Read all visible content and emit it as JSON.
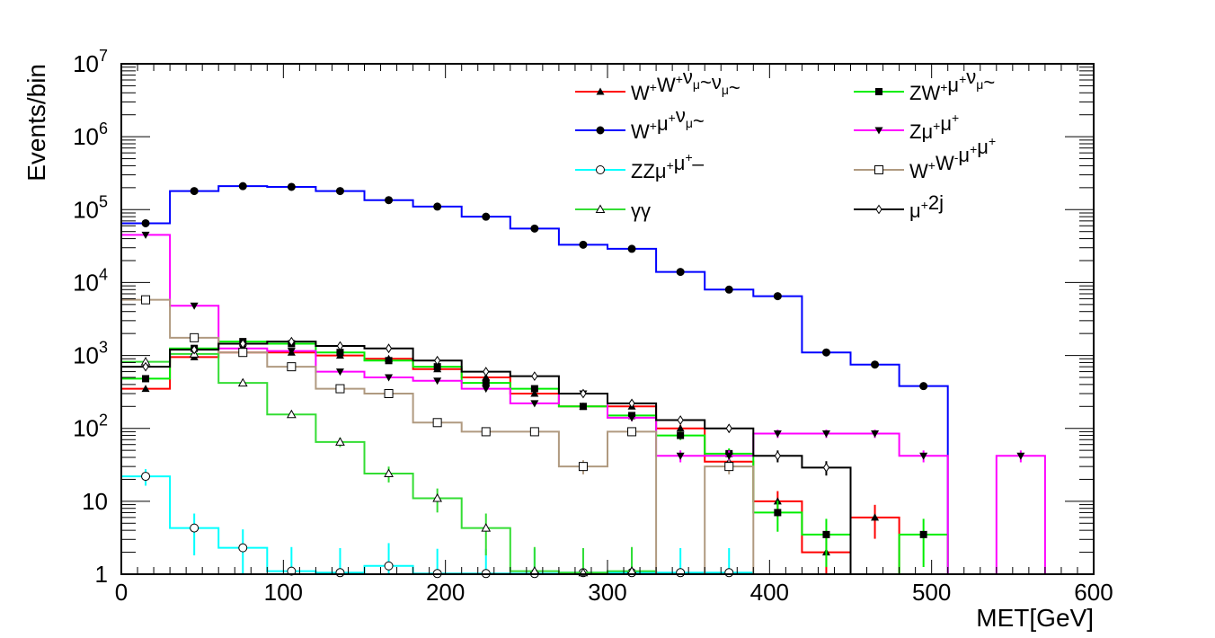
{
  "chart_data": {
    "type": "histogram",
    "scale_y": "log",
    "xlabel": "MET[GeV]",
    "ylabel": "Events/bin",
    "xlim": [
      0,
      600
    ],
    "ylim": [
      1,
      10000000
    ],
    "x_ticks": [
      "0",
      "100",
      "200",
      "300",
      "400",
      "500",
      "600"
    ],
    "y_ticks": [
      {
        "base": "1",
        "exp": ""
      },
      {
        "base": "10",
        "exp": ""
      },
      {
        "base": "10",
        "exp": "2"
      },
      {
        "base": "10",
        "exp": "3"
      },
      {
        "base": "10",
        "exp": "4"
      },
      {
        "base": "10",
        "exp": "5"
      },
      {
        "base": "10",
        "exp": "6"
      },
      {
        "base": "10",
        "exp": "7"
      }
    ],
    "bin_width": 30,
    "series": [
      {
        "name": "WWvv",
        "color": "#ff0000",
        "marker": "triangle-up-filled",
        "legend": [
          [
            "W",
            "n"
          ],
          [
            "+",
            "sup"
          ],
          [
            "W",
            "n"
          ],
          [
            "+",
            "sup"
          ],
          [
            "ν",
            "n"
          ],
          [
            "μ",
            "sub"
          ],
          [
            "~ν",
            "n"
          ],
          [
            "μ",
            "sub"
          ],
          [
            "~",
            "n"
          ]
        ],
        "values": [
          350,
          950,
          1100,
          1100,
          1000,
          900,
          650,
          500,
          300,
          200,
          200,
          100,
          35,
          10,
          2,
          6
        ]
      },
      {
        "name": "Wuv",
        "color": "#0000ff",
        "marker": "circle-filled",
        "legend": [
          [
            "W",
            "n"
          ],
          [
            "+",
            "sup"
          ],
          [
            "μ",
            "n"
          ],
          [
            "+",
            "sup"
          ],
          [
            "ν",
            "n"
          ],
          [
            "μ",
            "sub"
          ],
          [
            "~",
            "n"
          ]
        ],
        "values": [
          65000,
          180000,
          210000,
          205000,
          180000,
          135000,
          110000,
          80000,
          55000,
          33000,
          29000,
          14000,
          8000,
          6500,
          1100,
          750,
          380
        ]
      },
      {
        "name": "ZZuu",
        "color": "#00ffff",
        "marker": "circle-open",
        "legend": [
          [
            "ZZμ",
            "n"
          ],
          [
            "+",
            "sup"
          ],
          [
            "μ",
            "n"
          ],
          [
            "+",
            "sup"
          ],
          [
            "_",
            "n"
          ]
        ],
        "values": [
          22,
          4.3,
          2.3,
          1.1,
          1.05,
          1.3,
          1.02,
          1.02,
          1.02,
          1.05,
          1.05,
          1.05,
          1.05
        ]
      },
      {
        "name": "yy",
        "color": "#33dd33",
        "marker": "triangle-up-open",
        "legend": [
          [
            "γγ",
            "n"
          ]
        ],
        "values": [
          820,
          1050,
          420,
          155,
          65,
          24,
          11,
          4.3,
          1.1,
          1.05,
          1.1
        ]
      },
      {
        "name": "ZWuv",
        "color": "#00ee00",
        "marker": "square-filled",
        "legend": [
          [
            "ZW",
            "n"
          ],
          [
            "+",
            "sup"
          ],
          [
            "μ",
            "n"
          ],
          [
            "+",
            "sup"
          ],
          [
            "ν",
            "n"
          ],
          [
            "μ",
            "sub"
          ],
          [
            "~",
            "n"
          ]
        ],
        "values": [
          480,
          1250,
          1550,
          1450,
          1100,
          850,
          700,
          420,
          350,
          200,
          150,
          80,
          45,
          7,
          3.5,
          0,
          3.5
        ]
      },
      {
        "name": "Zuu",
        "color": "#ff00ff",
        "marker": "triangle-down-filled",
        "legend": [
          [
            "Zμ",
            "n"
          ],
          [
            "+",
            "sup"
          ],
          [
            "μ",
            "n"
          ],
          [
            "+",
            "sup"
          ]
        ],
        "values": [
          45000,
          4800,
          1250,
          1150,
          600,
          500,
          450,
          350,
          220,
          300,
          140,
          42,
          42,
          85,
          85,
          85,
          42,
          0,
          42
        ]
      },
      {
        "name": "WWuu",
        "color": "#b09a80",
        "marker": "square-open",
        "legend": [
          [
            "W",
            "n"
          ],
          [
            "+",
            "sup"
          ],
          [
            "W",
            "n"
          ],
          [
            "-",
            "sup"
          ],
          [
            "μ",
            "n"
          ],
          [
            "+",
            "sup"
          ],
          [
            "μ",
            "n"
          ],
          [
            "+",
            "sup"
          ]
        ],
        "values": [
          5800,
          1750,
          1100,
          700,
          350,
          300,
          120,
          90,
          90,
          30,
          90,
          0,
          30
        ]
      },
      {
        "name": "u2j",
        "color": "#000000",
        "marker": "diamond-open",
        "legend": [
          [
            "μ",
            "n"
          ],
          [
            "+",
            "sup"
          ],
          [
            "2j",
            "n"
          ]
        ],
        "values": [
          700,
          1200,
          1450,
          1550,
          1350,
          1250,
          850,
          600,
          520,
          300,
          220,
          130,
          100,
          42,
          29
        ]
      }
    ]
  }
}
